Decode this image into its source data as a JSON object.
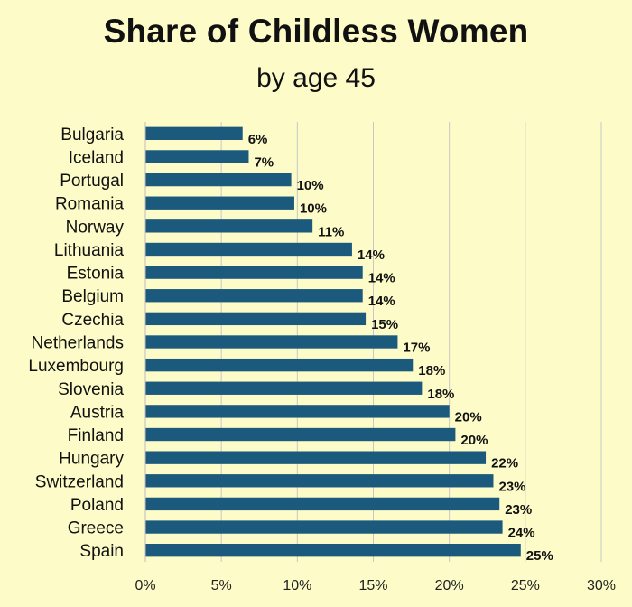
{
  "title": "Share of Childless Women",
  "subtitle": "by age 45",
  "colors": {
    "bar": "#1b5a7c",
    "background": "#fdfcc8",
    "grid": "#c8c8c8"
  },
  "chart_data": {
    "type": "bar",
    "orientation": "horizontal",
    "title": "Share of Childless Women",
    "subtitle": "by age 45",
    "categories": [
      "Bulgaria",
      "Iceland",
      "Portugal",
      "Romania",
      "Norway",
      "Lithuania",
      "Estonia",
      "Belgium",
      "Czechia",
      "Netherlands",
      "Luxembourg",
      "Slovenia",
      "Austria",
      "Finland",
      "Hungary",
      "Switzerland",
      "Poland",
      "Greece",
      "Spain"
    ],
    "values": [
      6.4,
      6.8,
      9.6,
      9.8,
      11.0,
      13.6,
      14.3,
      14.3,
      14.5,
      16.6,
      17.6,
      18.2,
      20.0,
      20.4,
      22.4,
      22.9,
      23.3,
      23.5,
      24.7
    ],
    "value_labels": [
      "6%",
      "7%",
      "10%",
      "10%",
      "11%",
      "14%",
      "14%",
      "14%",
      "15%",
      "17%",
      "18%",
      "18%",
      "20%",
      "20%",
      "22%",
      "23%",
      "23%",
      "24%",
      "25%"
    ],
    "xlim": [
      0,
      30
    ],
    "x_ticks": [
      0,
      5,
      10,
      15,
      20,
      25,
      30
    ],
    "x_tick_labels": [
      "0%",
      "5%",
      "10%",
      "15%",
      "20%",
      "25%",
      "30%"
    ],
    "xlabel": "",
    "ylabel": "",
    "grid": true,
    "legend": "none"
  }
}
